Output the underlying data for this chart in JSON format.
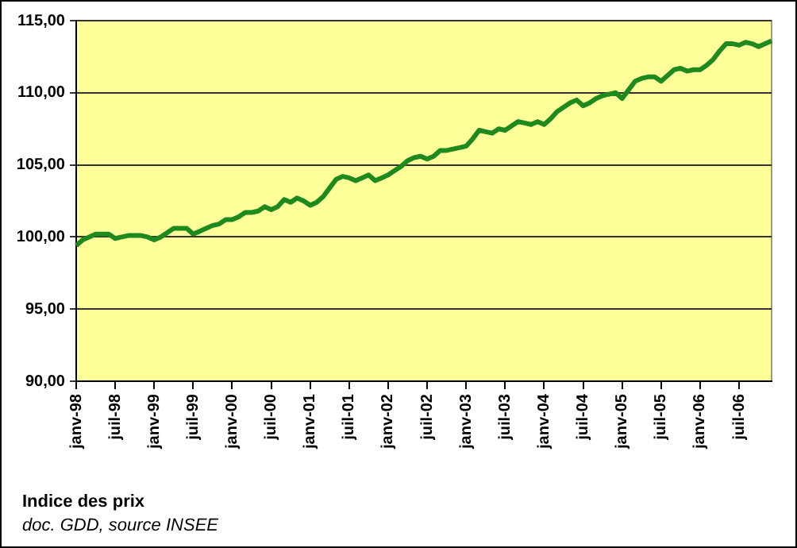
{
  "chart_data": {
    "type": "line",
    "title": "Indice des prix",
    "annotations": [
      "doc. GDD, source INSEE"
    ],
    "categories": [
      "janv-98",
      null,
      null,
      null,
      null,
      null,
      "juil-98",
      null,
      null,
      null,
      null,
      null,
      "janv-99",
      null,
      null,
      null,
      null,
      null,
      "juil-99",
      null,
      null,
      null,
      null,
      null,
      "janv-00",
      null,
      null,
      null,
      null,
      null,
      "juil-00",
      null,
      null,
      null,
      null,
      null,
      "janv-01",
      null,
      null,
      null,
      null,
      null,
      "juil-01",
      null,
      null,
      null,
      null,
      null,
      "janv-02",
      null,
      null,
      null,
      null,
      null,
      "juil-02",
      null,
      null,
      null,
      null,
      null,
      "janv-03",
      null,
      null,
      null,
      null,
      null,
      "juil-03",
      null,
      null,
      null,
      null,
      null,
      "janv-04",
      null,
      null,
      null,
      null,
      null,
      "juil-04",
      null,
      null,
      null,
      null,
      null,
      "janv-05",
      null,
      null,
      null,
      null,
      null,
      "juil-05",
      null,
      null,
      null,
      null,
      null,
      "janv-06",
      null,
      null,
      null,
      null,
      null,
      "juil-06",
      null,
      null,
      null,
      null,
      null
    ],
    "series": [
      {
        "color": "#1e8a1e",
        "values": [
          99.4,
          99.8,
          100.0,
          100.2,
          100.2,
          100.2,
          99.9,
          100.0,
          100.1,
          100.1,
          100.1,
          100.0,
          99.8,
          100.0,
          100.3,
          100.6,
          100.6,
          100.6,
          100.2,
          100.4,
          100.6,
          100.8,
          100.9,
          101.2,
          101.2,
          101.4,
          101.7,
          101.7,
          101.8,
          102.1,
          101.9,
          102.1,
          102.6,
          102.4,
          102.7,
          102.5,
          102.2,
          102.4,
          102.8,
          103.4,
          104.0,
          104.2,
          104.1,
          103.9,
          104.1,
          104.3,
          103.9,
          104.1,
          104.3,
          104.6,
          104.9,
          105.3,
          105.5,
          105.6,
          105.4,
          105.6,
          106.0,
          106.0,
          106.1,
          106.2,
          106.3,
          106.8,
          107.4,
          107.3,
          107.2,
          107.5,
          107.4,
          107.7,
          108.0,
          107.9,
          107.8,
          108.0,
          107.8,
          108.2,
          108.7,
          109.0,
          109.3,
          109.5,
          109.1,
          109.3,
          109.6,
          109.8,
          109.9,
          110.0,
          109.6,
          110.2,
          110.8,
          111.0,
          111.1,
          111.1,
          110.8,
          111.2,
          111.6,
          111.7,
          111.5,
          111.6,
          111.6,
          111.9,
          112.3,
          112.9,
          113.4,
          113.4,
          113.3,
          113.5,
          113.4,
          113.2,
          113.4,
          113.6
        ]
      }
    ],
    "ylim": [
      90,
      115
    ],
    "yticks": [
      {
        "value": 90,
        "label": "90,00"
      },
      {
        "value": 95,
        "label": "95,00"
      },
      {
        "value": 100,
        "label": "100,00"
      },
      {
        "value": 105,
        "label": "105,00"
      },
      {
        "value": 110,
        "label": "110,00"
      },
      {
        "value": 115,
        "label": "115,00"
      }
    ],
    "grid": "y",
    "legend": false,
    "marker": "none",
    "line_style": "solid"
  }
}
